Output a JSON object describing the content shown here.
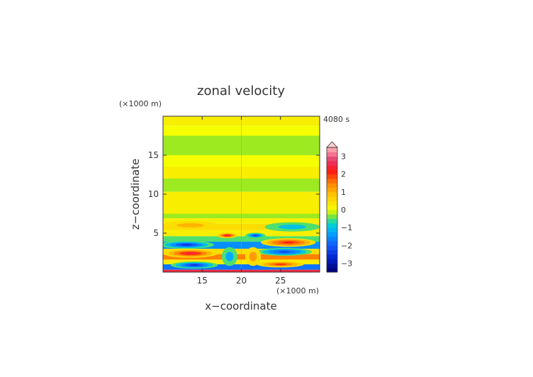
{
  "chart_data": {
    "type": "heatmap",
    "title": "zonal velocity",
    "xlabel": "x−coordinate",
    "ylabel": "z−coordinate",
    "x_unit": "(×1000 m)",
    "y_unit": "(×1000 m)",
    "time_label": "4080 s",
    "xlim": [
      10,
      30
    ],
    "ylim": [
      0,
      20
    ],
    "x_ticks": [
      15,
      20,
      25
    ],
    "y_ticks": [
      5,
      10,
      15
    ],
    "colorbar": {
      "range": [
        -3.5,
        3.5
      ],
      "step": 0.25,
      "ticks": [
        3,
        2,
        1,
        0,
        -1,
        -2,
        -3
      ],
      "extend": "max"
    },
    "bands": [
      {
        "z": [
          18.8,
          20
        ],
        "value": 0.3
      },
      {
        "z": [
          17.5,
          18.8
        ],
        "value": 0.1
      },
      {
        "z": [
          15.0,
          17.5
        ],
        "value": -0.2
      },
      {
        "z": [
          13.5,
          15.0
        ],
        "value": 0.1
      },
      {
        "z": [
          12.0,
          13.5
        ],
        "value": 0.3
      },
      {
        "z": [
          10.3,
          12.0
        ],
        "value": -0.2
      },
      {
        "z": [
          7.5,
          10.3
        ],
        "value": 0.15
      },
      {
        "z": [
          6.9,
          7.5
        ],
        "value": -0.2
      },
      {
        "z": [
          6.2,
          6.9
        ],
        "value": 0.3
      },
      {
        "z": [
          5.4,
          6.2
        ],
        "value": 0.6
      },
      {
        "z": [
          4.6,
          5.4
        ],
        "value": 0.2
      },
      {
        "z": [
          3.9,
          4.6
        ],
        "value": -0.6
      },
      {
        "z": [
          3.0,
          3.9
        ],
        "value": -1.5
      },
      {
        "z": [
          2.3,
          3.0
        ],
        "value": 0.4
      },
      {
        "z": [
          1.6,
          2.3
        ],
        "value": 1.5
      },
      {
        "z": [
          1.0,
          1.6
        ],
        "value": 0.3
      },
      {
        "z": [
          0.3,
          1.0
        ],
        "value": -1.8
      },
      {
        "z": [
          0,
          0.3
        ],
        "value": 2.5
      }
    ],
    "features": [
      {
        "x": 13.5,
        "z": 2.4,
        "rx": 3.5,
        "rz": 0.55,
        "value": 2.4
      },
      {
        "x": 13.0,
        "z": 3.5,
        "rx": 3.5,
        "rz": 0.5,
        "value": -2.4
      },
      {
        "x": 14.0,
        "z": 0.9,
        "rx": 3.0,
        "rz": 0.45,
        "value": -2.6
      },
      {
        "x": 26.0,
        "z": 3.8,
        "rx": 3.5,
        "rz": 0.55,
        "value": 2.3
      },
      {
        "x": 25.5,
        "z": 2.6,
        "rx": 3.5,
        "rz": 0.5,
        "value": -2.3
      },
      {
        "x": 25.0,
        "z": 1.0,
        "rx": 3.0,
        "rz": 0.4,
        "value": 2.0
      },
      {
        "x": 26.5,
        "z": 5.8,
        "rx": 3.5,
        "rz": 0.6,
        "value": -0.9
      },
      {
        "x": 13.5,
        "z": 6.0,
        "rx": 3.5,
        "rz": 0.55,
        "value": 0.9
      },
      {
        "x": 18.2,
        "z": 4.7,
        "rx": 1.3,
        "rz": 0.35,
        "value": 2.6
      },
      {
        "x": 21.8,
        "z": 4.7,
        "rx": 1.3,
        "rz": 0.35,
        "value": -2.2
      },
      {
        "x": 18.5,
        "z": 2.0,
        "rx": 1.0,
        "rz": 1.2,
        "value": -1.2
      },
      {
        "x": 21.5,
        "z": 2.0,
        "rx": 1.0,
        "rz": 1.2,
        "value": 1.2
      }
    ]
  }
}
